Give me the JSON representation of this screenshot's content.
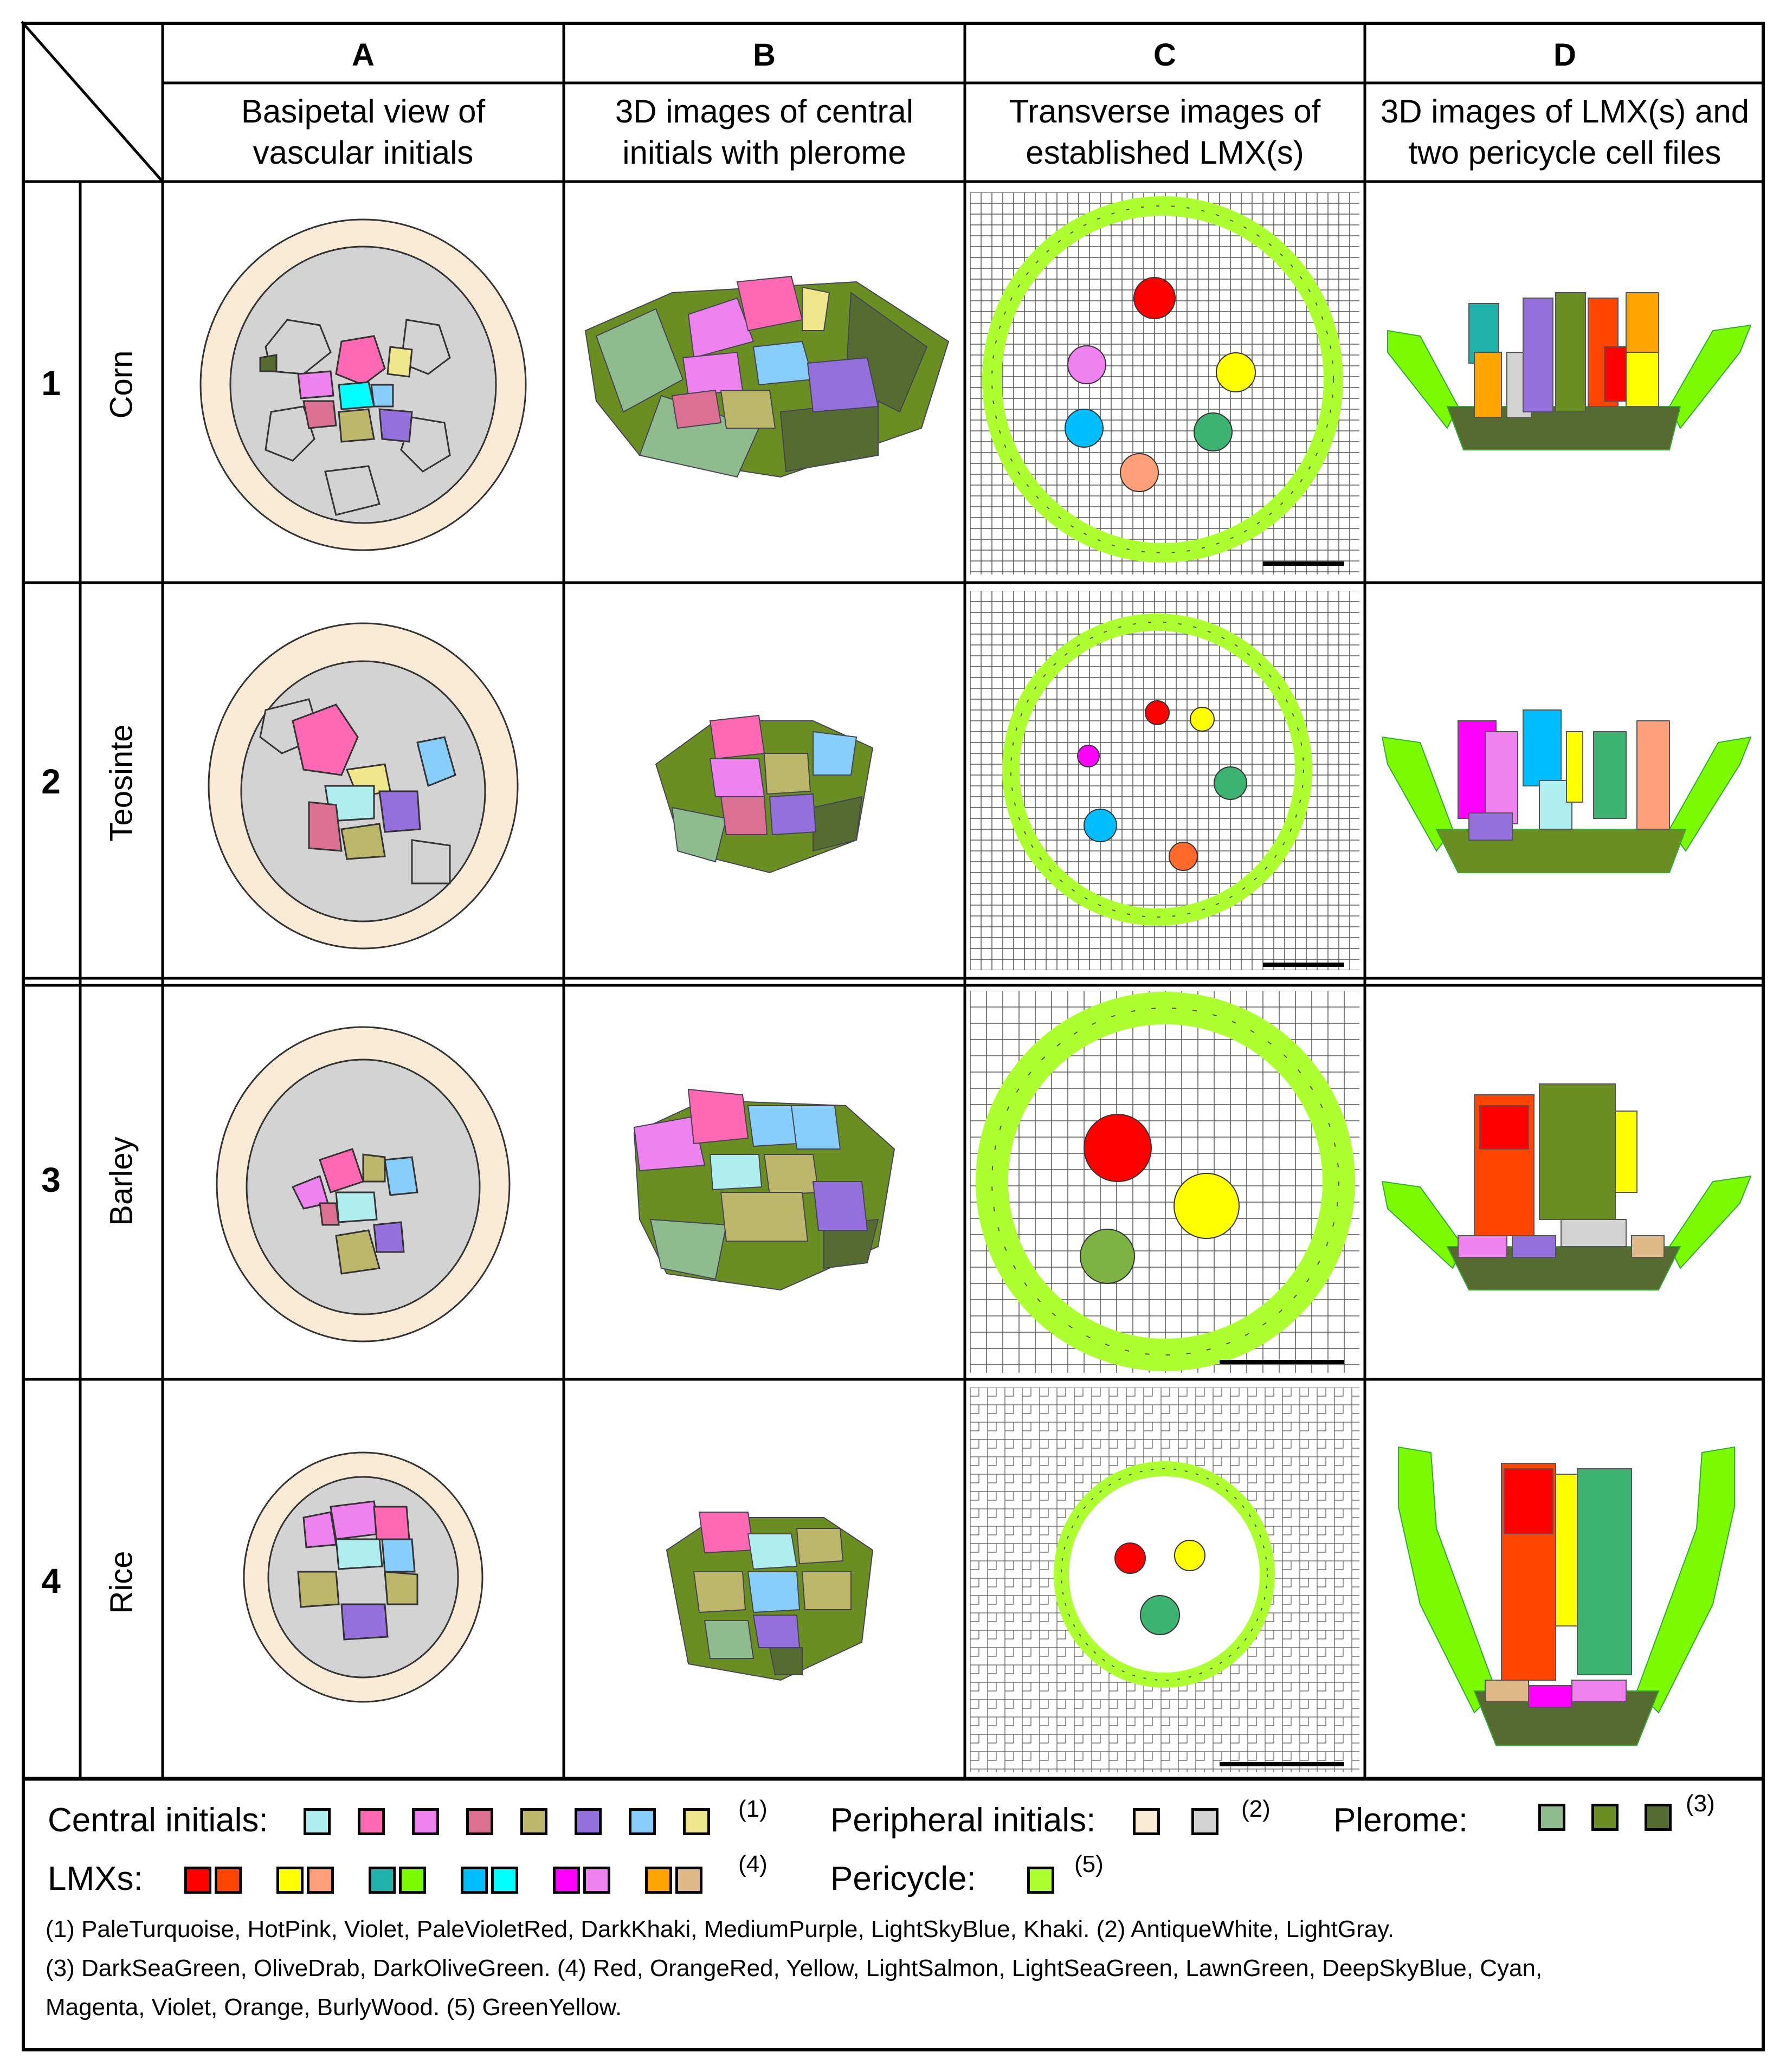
{
  "columns": [
    {
      "letter": "A",
      "line1": "Basipetal view of",
      "line2": "vascular initials"
    },
    {
      "letter": "B",
      "line1": "3D images of central",
      "line2": "initials with plerome"
    },
    {
      "letter": "C",
      "line1": "Transverse images of",
      "line2": "established LMX(s)"
    },
    {
      "letter": "D",
      "line1": "3D images of LMX(s) and",
      "line2": "two pericycle cell files"
    }
  ],
  "rows": [
    {
      "number": "1",
      "name": "Corn"
    },
    {
      "number": "2",
      "name": "Teosinte"
    },
    {
      "number": "3",
      "name": "Barley"
    },
    {
      "number": "4",
      "name": "Rice"
    }
  ],
  "legend": {
    "central_label": "Central initials:",
    "central_sup": "(1)",
    "central_colors": [
      "#AFEEEE",
      "#FF69B4",
      "#EE82EE",
      "#DB7093",
      "#BDB76B",
      "#9370DB",
      "#87CEFA",
      "#F0E68C"
    ],
    "peripheral_label": "Peripheral initials:",
    "peripheral_sup": "(2)",
    "peripheral_colors": [
      "#FAEBD7",
      "#D3D3D3"
    ],
    "plerome_label": "Plerome:",
    "plerome_sup": "(3)",
    "plerome_colors": [
      "#8FBC8F",
      "#6B8E23",
      "#556B2F"
    ],
    "lmx_label": "LMXs:",
    "lmx_sup": "(4)",
    "lmx_colors": [
      [
        "#FF0000",
        "#FF4500"
      ],
      [
        "#FFFF00",
        "#FFA07A"
      ],
      [
        "#20B2AA",
        "#7CFC00"
      ],
      [
        "#00BFFF",
        "#00FFFF"
      ],
      [
        "#FF00FF",
        "#EE82EE"
      ],
      [
        "#FFA500",
        "#DEB887"
      ]
    ],
    "pericycle_label": "Pericycle:",
    "pericycle_sup": "(5)",
    "pericycle_colors": [
      "#ADFF2F"
    ],
    "notes": [
      "(1) PaleTurquoise, HotPink, Violet, PaleVioletRed, DarkKhaki, MediumPurple, LightSkyBlue, Khaki. (2) AntiqueWhite, LightGray.",
      "(3) DarkSeaGreen, OliveDrab, DarkOliveGreen. (4) Red, OrangeRed, Yellow, LightSalmon, LightSeaGreen, LawnGreen, DeepSkyBlue, Cyan,",
      "Magenta, Violet, Orange, BurlyWood. (5) GreenYellow."
    ]
  }
}
